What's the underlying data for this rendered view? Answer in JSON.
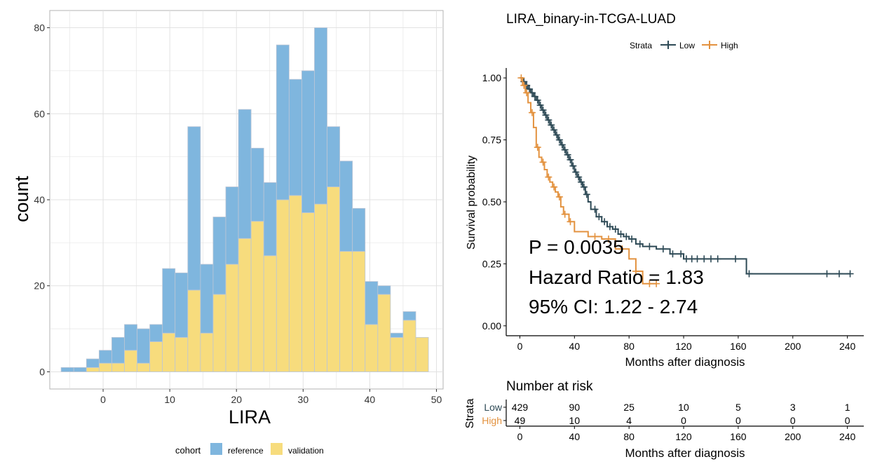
{
  "chart_data": [
    {
      "type": "bar",
      "subtype": "stacked-histogram",
      "title": "",
      "xlabel": "LIRA",
      "ylabel": "count",
      "xlim": [
        -8,
        51
      ],
      "ylim": [
        -4,
        84
      ],
      "xticks": [
        0,
        10,
        20,
        30,
        40,
        50
      ],
      "yticks": [
        0,
        20,
        40,
        60,
        80
      ],
      "grid": true,
      "bin_width": 1.9,
      "bin_starts": [
        -6.3,
        -4.4,
        -2.5,
        -0.6,
        1.3,
        3.2,
        5.1,
        7.0,
        8.9,
        10.8,
        12.7,
        14.6,
        16.5,
        18.4,
        20.3,
        22.2,
        24.1,
        26.0,
        27.9,
        29.8,
        31.7,
        33.6,
        35.5,
        37.4,
        39.3,
        41.2,
        43.1,
        45.0,
        46.9
      ],
      "series": [
        {
          "name": "reference",
          "color": "#7fb6de",
          "values": [
            1,
            1,
            2,
            3,
            6,
            6,
            8,
            4,
            15,
            15,
            38,
            16,
            18,
            18,
            30,
            17,
            17,
            36,
            27,
            33,
            41,
            14,
            21,
            10,
            10,
            2,
            1,
            2,
            0
          ]
        },
        {
          "name": "validation",
          "color": "#f7dc7d",
          "values": [
            0,
            0,
            1,
            2,
            2,
            5,
            2,
            7,
            9,
            8,
            19,
            9,
            18,
            25,
            31,
            35,
            27,
            40,
            41,
            37,
            39,
            43,
            28,
            28,
            11,
            18,
            8,
            12,
            8
          ]
        }
      ],
      "legend": {
        "title": "cohort",
        "position": "bottom",
        "entries": [
          "reference",
          "validation"
        ]
      }
    },
    {
      "type": "line",
      "subtype": "kaplan-meier",
      "title": "LIRA_binary-in-TCGA-LUAD",
      "xlabel": "Months after diagnosis",
      "ylabel": "Survival probability",
      "xlim": [
        -10,
        252
      ],
      "ylim": [
        -0.04,
        1.04
      ],
      "xticks": [
        0,
        40,
        80,
        120,
        160,
        200,
        240
      ],
      "yticks": [
        0.0,
        0.25,
        0.5,
        0.75,
        1.0
      ],
      "ytick_labels": [
        "0.00",
        "0.25",
        "0.50",
        "0.75",
        "1.00"
      ],
      "legend": {
        "title": "Strata",
        "position": "top",
        "entries": [
          "Low",
          "High"
        ]
      },
      "series": [
        {
          "name": "Low",
          "color": "#2e4a56",
          "x": [
            0,
            2,
            4,
            6,
            8,
            10,
            12,
            14,
            16,
            18,
            20,
            22,
            24,
            26,
            28,
            30,
            32,
            34,
            36,
            38,
            40,
            42,
            44,
            46,
            48,
            50,
            52,
            56,
            60,
            64,
            68,
            72,
            76,
            80,
            85,
            90,
            100,
            110,
            120,
            140,
            160,
            166,
            242
          ],
          "y": [
            1.0,
            0.985,
            0.97,
            0.955,
            0.94,
            0.925,
            0.91,
            0.89,
            0.87,
            0.85,
            0.83,
            0.81,
            0.79,
            0.77,
            0.75,
            0.73,
            0.71,
            0.69,
            0.67,
            0.645,
            0.62,
            0.6,
            0.58,
            0.56,
            0.53,
            0.5,
            0.47,
            0.44,
            0.42,
            0.4,
            0.39,
            0.37,
            0.36,
            0.35,
            0.33,
            0.32,
            0.31,
            0.29,
            0.27,
            0.27,
            0.27,
            0.21,
            0.21
          ],
          "censor_x": [
            3,
            5,
            7,
            9,
            11,
            13,
            15,
            17,
            19,
            21,
            23,
            25,
            27,
            29,
            31,
            33,
            35,
            37,
            39,
            41,
            43,
            45,
            47,
            49,
            55,
            58,
            62,
            66,
            70,
            74,
            78,
            82,
            88,
            95,
            105,
            112,
            118,
            122,
            126,
            130,
            135,
            140,
            145,
            158,
            168,
            225,
            234,
            242
          ]
        },
        {
          "name": "High",
          "color": "#e3923f",
          "x": [
            0,
            2,
            4,
            6,
            8,
            10,
            12,
            14,
            16,
            18,
            20,
            22,
            24,
            26,
            28,
            30,
            32,
            36,
            40,
            50,
            60,
            70,
            80,
            85,
            90,
            100
          ],
          "y": [
            1.0,
            0.97,
            0.94,
            0.9,
            0.86,
            0.8,
            0.72,
            0.68,
            0.66,
            0.63,
            0.6,
            0.58,
            0.56,
            0.54,
            0.52,
            0.48,
            0.45,
            0.42,
            0.38,
            0.36,
            0.35,
            0.31,
            0.27,
            0.22,
            0.17,
            0.17
          ],
          "censor_x": [
            1,
            3,
            5,
            9,
            13,
            17,
            21,
            25,
            29,
            33,
            37,
            55,
            65,
            75,
            85,
            95,
            100
          ]
        }
      ],
      "annotations": [
        "P = 0.0035",
        "Hazard Ratio = 1.83",
        "95% CI: 1.22 - 2.74"
      ]
    },
    {
      "type": "table",
      "title": "Number at risk",
      "xlabel": "Months after diagnosis",
      "ylabel": "Strata",
      "xticks": [
        0,
        40,
        80,
        120,
        160,
        200,
        240
      ],
      "rows": [
        {
          "name": "Low",
          "color": "#2e4a56",
          "values": [
            429,
            90,
            25,
            10,
            5,
            3,
            1
          ]
        },
        {
          "name": "High",
          "color": "#e3923f",
          "values": [
            49,
            10,
            4,
            0,
            0,
            0,
            0
          ]
        }
      ]
    }
  ]
}
